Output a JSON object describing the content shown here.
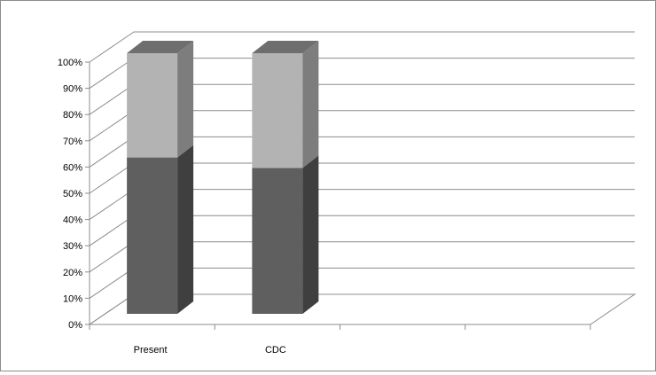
{
  "chart_data": {
    "type": "bar",
    "stacked": true,
    "percent_stacked": true,
    "three_d": true,
    "categories": [
      "Present",
      "CDC"
    ],
    "series": [
      {
        "values": [
          60,
          56
        ]
      },
      {
        "values": [
          40,
          44
        ]
      }
    ],
    "y_ticks": [
      "0%",
      "10%",
      "20%",
      "30%",
      "40%",
      "50%",
      "60%",
      "70%",
      "80%",
      "90%",
      "100%"
    ],
    "ylim": [
      0,
      100
    ],
    "grid": true,
    "legend": "none",
    "title": "",
    "xlabel": "",
    "ylabel": "",
    "colors": {
      "series_front": [
        "#5f5f5f",
        "#b3b3b3"
      ],
      "series_side": [
        "#3f3f3f",
        "#7d7d7d"
      ],
      "series_top": [
        "#4a4a4a",
        "#6e6e6e"
      ],
      "gridline": "#8c8c8c",
      "axis": "#8c8c8c"
    }
  }
}
